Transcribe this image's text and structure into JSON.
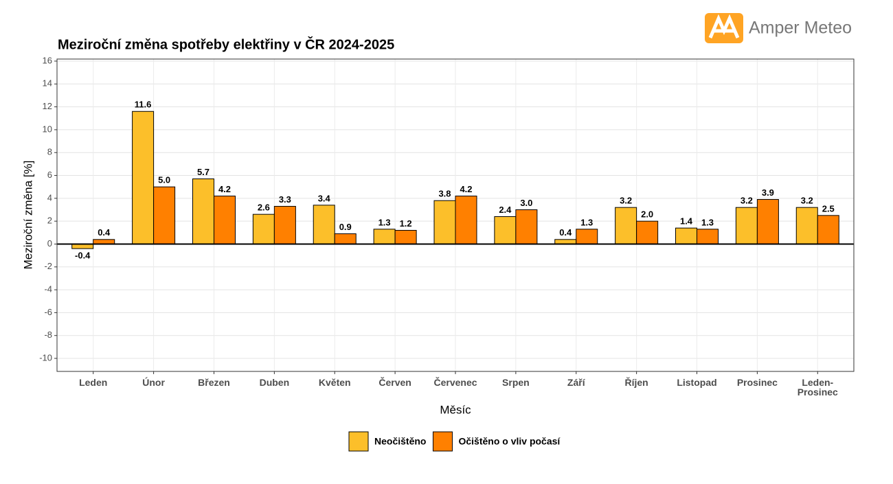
{
  "logo": "Amper Meteo",
  "chart_data": {
    "type": "bar",
    "title": "Meziroční změna spotřeby elektřiny v ČR 2024-2025",
    "x_label": "Měsíc",
    "y_label": "Meziroční změna [%]",
    "categories": [
      "Leden",
      "Únor",
      "Březen",
      "Duben",
      "Květen",
      "Červen",
      "Červenec",
      "Srpen",
      "Září",
      "Říjen",
      "Listopad",
      "Prosinec",
      "Leden-Prosinec"
    ],
    "series": [
      {
        "name": "Neočištěno",
        "color": "#fcbf2a",
        "values": [
          -0.4,
          11.6,
          5.7,
          2.6,
          3.4,
          1.3,
          3.8,
          2.4,
          0.4,
          3.2,
          1.4,
          3.2,
          3.2
        ],
        "value_labels": [
          "-0.4",
          "11.6",
          "5.7",
          "2.6",
          "3.4",
          "1.3",
          "3.8",
          "2.4",
          "0.4",
          "3.2",
          "1.4",
          "3.2",
          "3.2"
        ]
      },
      {
        "name": "Očištěno o vliv počasí",
        "color": "#ff8000",
        "values": [
          0.4,
          5.0,
          4.2,
          3.3,
          0.9,
          1.2,
          4.2,
          3.0,
          1.3,
          2.0,
          1.3,
          3.9,
          2.5
        ],
        "value_labels": [
          "0.4",
          "5.0",
          "4.2",
          "3.3",
          "0.9",
          "1.2",
          "4.2",
          "3.0",
          "1.3",
          "2.0",
          "1.3",
          "3.9",
          "2.5"
        ]
      }
    ],
    "ylim": [
      -11.14,
      16.18
    ],
    "yticks": [
      -10,
      -8,
      -6,
      -4,
      -2,
      0,
      2,
      4,
      6,
      8,
      10,
      12,
      14,
      16
    ],
    "grid": true,
    "legend": "bottom"
  }
}
